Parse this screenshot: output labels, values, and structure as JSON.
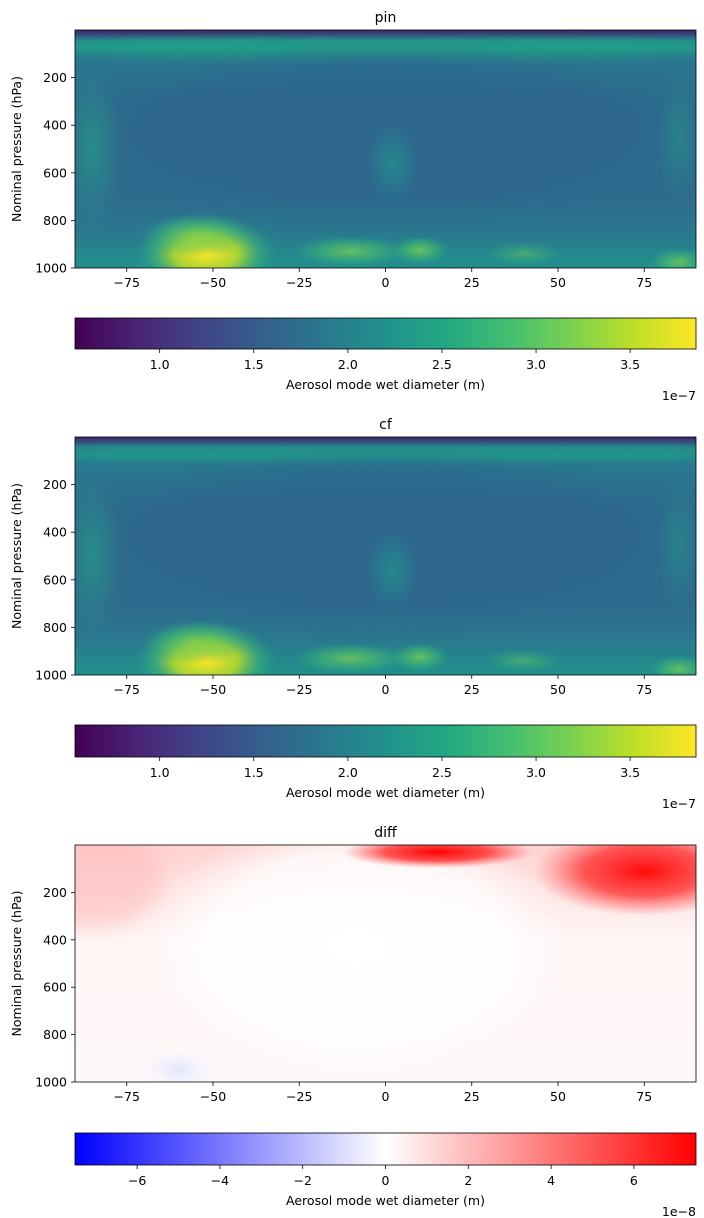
{
  "chart_data": [
    {
      "type": "heatmap",
      "title": "pin",
      "ylabel": "Nominal pressure (hPa)",
      "x_ticks": [
        -75,
        -50,
        -25,
        0,
        25,
        50,
        75
      ],
      "x_tick_labels": [
        "−75",
        "−50",
        "−25",
        "0",
        "25",
        "50",
        "75"
      ],
      "xlim": [
        -90,
        90
      ],
      "y_ticks": [
        200,
        400,
        600,
        800,
        1000
      ],
      "y_tick_labels": [
        "200",
        "400",
        "600",
        "800",
        "1000"
      ],
      "ylim": [
        1000,
        0
      ],
      "colormap": "viridis",
      "colorbar": {
        "label": "Aerosol mode wet diameter (m)",
        "ticks": [
          1.0,
          1.5,
          2.0,
          2.5,
          3.0,
          3.5
        ],
        "tick_labels": [
          "1.0",
          "1.5",
          "2.0",
          "2.5",
          "3.0",
          "3.5"
        ],
        "range": [
          0.55,
          3.85
        ],
        "offset_text": "1e−7",
        "orientation": "horizontal"
      }
    },
    {
      "type": "heatmap",
      "title": "cf",
      "ylabel": "Nominal pressure (hPa)",
      "x_ticks": [
        -75,
        -50,
        -25,
        0,
        25,
        50,
        75
      ],
      "x_tick_labels": [
        "−75",
        "−50",
        "−25",
        "0",
        "25",
        "50",
        "75"
      ],
      "xlim": [
        -90,
        90
      ],
      "y_ticks": [
        200,
        400,
        600,
        800,
        1000
      ],
      "y_tick_labels": [
        "200",
        "400",
        "600",
        "800",
        "1000"
      ],
      "ylim": [
        1000,
        0
      ],
      "colormap": "viridis",
      "colorbar": {
        "label": "Aerosol mode wet diameter (m)",
        "ticks": [
          1.0,
          1.5,
          2.0,
          2.5,
          3.0,
          3.5
        ],
        "tick_labels": [
          "1.0",
          "1.5",
          "2.0",
          "2.5",
          "3.0",
          "3.5"
        ],
        "range": [
          0.55,
          3.85
        ],
        "offset_text": "1e−7",
        "orientation": "horizontal"
      }
    },
    {
      "type": "heatmap",
      "title": "diff",
      "ylabel": "Nominal pressure (hPa)",
      "x_ticks": [
        -75,
        -50,
        -25,
        0,
        25,
        50,
        75
      ],
      "x_tick_labels": [
        "−75",
        "−50",
        "−25",
        "0",
        "25",
        "50",
        "75"
      ],
      "xlim": [
        -90,
        90
      ],
      "y_ticks": [
        200,
        400,
        600,
        800,
        1000
      ],
      "y_tick_labels": [
        "200",
        "400",
        "600",
        "800",
        "1000"
      ],
      "ylim": [
        1000,
        0
      ],
      "colormap": "bwr",
      "colorbar": {
        "label": "Aerosol mode wet diameter (m)",
        "ticks": [
          -6,
          -4,
          -2,
          0,
          2,
          4,
          6
        ],
        "tick_labels": [
          "−6",
          "−4",
          "−2",
          "0",
          "2",
          "4",
          "6"
        ],
        "range": [
          -7.5,
          7.5
        ],
        "offset_text": "1e−8",
        "orientation": "horizontal"
      }
    }
  ]
}
